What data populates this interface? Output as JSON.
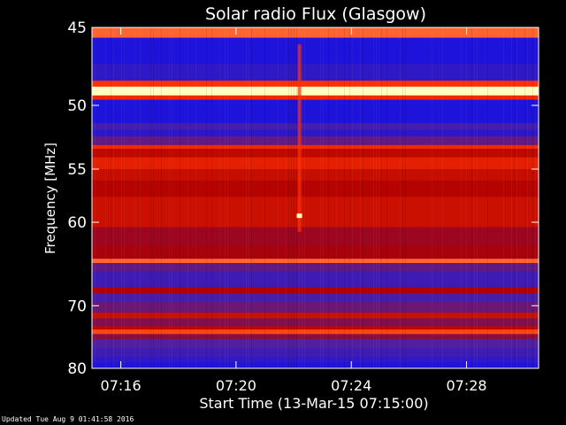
{
  "chart_data": {
    "type": "heatmap",
    "title": "Solar radio Flux (Glasgow)",
    "xlabel": "Start Time (13-Mar-15 07:15:00)",
    "ylabel": "Frequency [MHz]",
    "x_ticks": [
      "07:16",
      "07:20",
      "07:24",
      "07:28"
    ],
    "y_ticks": [
      45,
      50,
      55,
      60,
      70,
      80
    ],
    "y_range_mhz": [
      45,
      80
    ],
    "x_range": [
      "07:15:00",
      "07:30:30"
    ],
    "colors": {
      "background": "#000000",
      "low": "#1010e8",
      "mid": "#b00000",
      "high": "#ff3000",
      "peak": "#ffffc0"
    },
    "bands": [
      {
        "f0": 45.0,
        "f1": 45.6,
        "level": 0.85
      },
      {
        "f0": 45.6,
        "f1": 47.2,
        "level": 0.05
      },
      {
        "f0": 47.2,
        "f1": 48.3,
        "level": 0.12
      },
      {
        "f0": 48.3,
        "f1": 48.7,
        "level": 0.8
      },
      {
        "f0": 48.7,
        "f1": 49.3,
        "level": 1.0
      },
      {
        "f0": 49.3,
        "f1": 49.6,
        "level": 0.75
      },
      {
        "f0": 49.6,
        "f1": 51.3,
        "level": 0.05
      },
      {
        "f0": 51.3,
        "f1": 51.8,
        "level": 0.2
      },
      {
        "f0": 51.8,
        "f1": 52.3,
        "level": 0.1
      },
      {
        "f0": 52.3,
        "f1": 53.0,
        "level": 0.3
      },
      {
        "f0": 53.0,
        "f1": 53.3,
        "level": 0.75
      },
      {
        "f0": 53.3,
        "f1": 54.0,
        "level": 0.55
      },
      {
        "f0": 54.0,
        "f1": 55.0,
        "level": 0.7
      },
      {
        "f0": 55.0,
        "f1": 56.0,
        "level": 0.58
      },
      {
        "f0": 56.0,
        "f1": 57.5,
        "level": 0.52
      },
      {
        "f0": 57.5,
        "f1": 60.5,
        "level": 0.6
      },
      {
        "f0": 60.5,
        "f1": 62.5,
        "level": 0.45
      },
      {
        "f0": 62.5,
        "f1": 64.0,
        "level": 0.48
      },
      {
        "f0": 64.0,
        "f1": 64.5,
        "level": 0.85
      },
      {
        "f0": 64.5,
        "f1": 65.5,
        "level": 0.3
      },
      {
        "f0": 65.5,
        "f1": 67.5,
        "level": 0.18
      },
      {
        "f0": 67.5,
        "f1": 68.3,
        "level": 0.5
      },
      {
        "f0": 68.3,
        "f1": 69.5,
        "level": 0.22
      },
      {
        "f0": 69.5,
        "f1": 71.0,
        "level": 0.32
      },
      {
        "f0": 71.0,
        "f1": 71.8,
        "level": 0.6
      },
      {
        "f0": 71.8,
        "f1": 73.0,
        "level": 0.38
      },
      {
        "f0": 73.0,
        "f1": 73.5,
        "level": 0.55
      },
      {
        "f0": 73.5,
        "f1": 74.2,
        "level": 0.82
      },
      {
        "f0": 74.2,
        "f1": 75.0,
        "level": 0.4
      },
      {
        "f0": 75.0,
        "f1": 76.5,
        "level": 0.25
      },
      {
        "f0": 76.5,
        "f1": 78.0,
        "level": 0.18
      },
      {
        "f0": 78.0,
        "f1": 79.0,
        "level": 0.12
      },
      {
        "f0": 79.0,
        "f1": 80.0,
        "level": 0.06
      }
    ],
    "features": [
      {
        "type": "burst",
        "time": "07:22:12",
        "f0": 46.0,
        "f1": 61.0,
        "peak_mhz": 59.3,
        "level": 0.95
      }
    ]
  },
  "footer": {
    "updated": "Updated Tue Aug  9 01:41:58 2016"
  }
}
